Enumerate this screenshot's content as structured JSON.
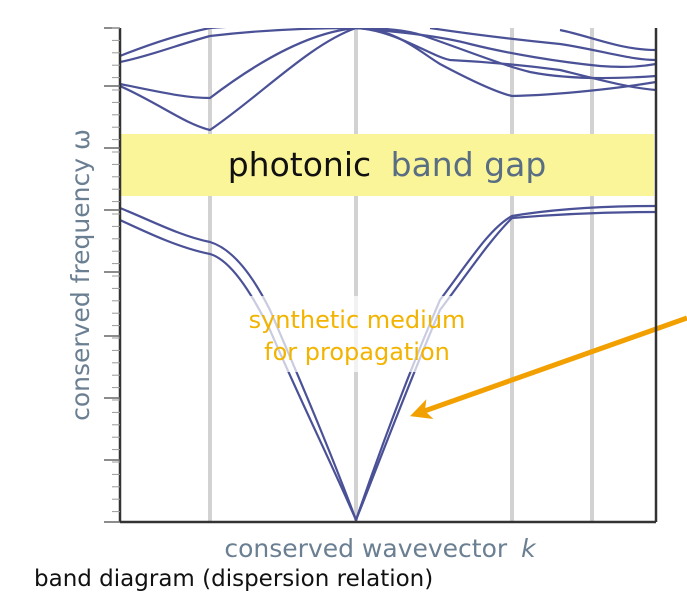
{
  "diagram": {
    "y_axis_label": "conserved frequency ω",
    "x_axis_label_text": "conserved wavevector",
    "x_axis_label_symbol": "k",
    "gap_label_part1": "photonic",
    "gap_label_part2": "band gap",
    "annotation_line1": "synthetic medium",
    "annotation_line2": "for propagation",
    "caption": "band diagram (dispersion relation)"
  },
  "colors": {
    "band_line": "#4a5196",
    "gap_fill": "#fbf59a",
    "gap_word_dark": "#111111",
    "gap_word_light": "#596e82",
    "axis_label": "#6b7f92",
    "annotation": "#f2b400",
    "arrow": "#f2a000",
    "grid": "#cfcfcf",
    "frame": "#333333"
  },
  "icons": {
    "arrow": "arrow-left-icon"
  }
}
